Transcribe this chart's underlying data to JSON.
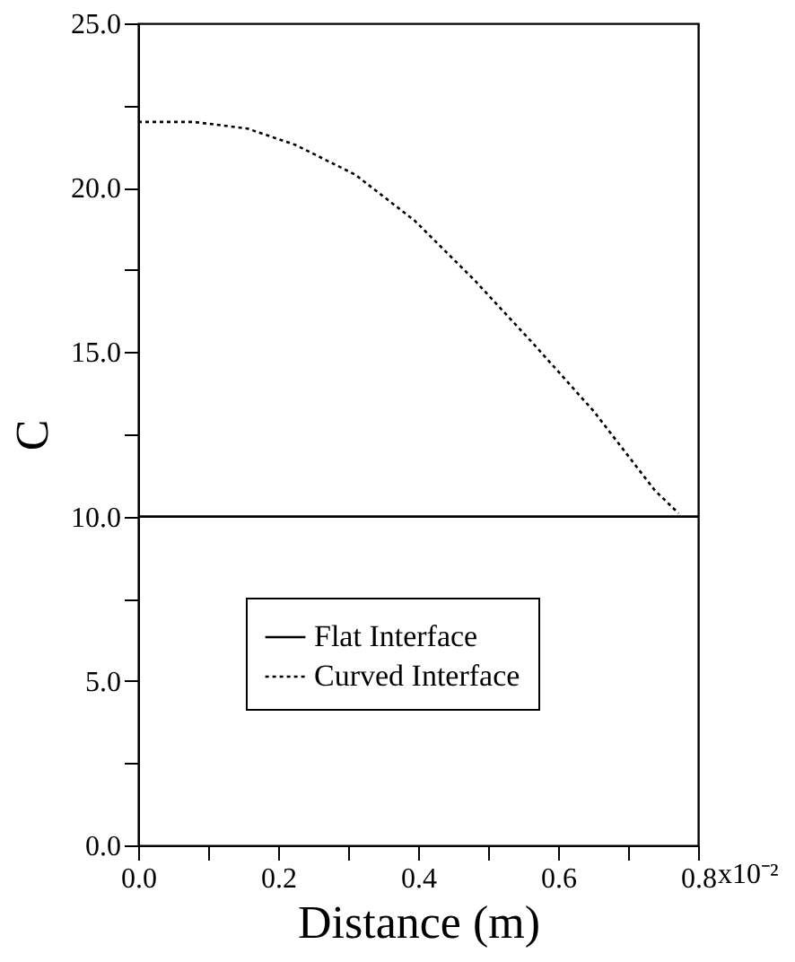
{
  "chart_data": {
    "type": "line",
    "xlabel": "Distance (m)",
    "ylabel": "C",
    "xlim": [
      0,
      0.8
    ],
    "ylim": [
      0,
      25
    ],
    "xticks": [
      {
        "value": 0,
        "label": "0.0"
      },
      {
        "value": 0.1,
        "label": null
      },
      {
        "value": 0.2,
        "label": "0.2"
      },
      {
        "value": 0.3,
        "label": null
      },
      {
        "value": 0.4,
        "label": "0.4"
      },
      {
        "value": 0.5,
        "label": null
      },
      {
        "value": 0.6,
        "label": "0.6"
      },
      {
        "value": 0.7,
        "label": null
      },
      {
        "value": 0.8,
        "label": "0.8"
      }
    ],
    "annotations": [
      "x10⁻²"
    ],
    "yticks": [
      {
        "value": 0,
        "label": "0.0"
      },
      {
        "value": 2.5,
        "label": null
      },
      {
        "value": 5,
        "label": "5.0"
      },
      {
        "value": 7.5,
        "label": null
      },
      {
        "value": 10,
        "label": "10.0"
      },
      {
        "value": 12.5,
        "label": null
      },
      {
        "value": 15,
        "label": "15.0"
      },
      {
        "value": 17.5,
        "label": null
      },
      {
        "value": 20,
        "label": "20.0"
      },
      {
        "value": 22.5,
        "label": null
      },
      {
        "value": 25,
        "label": "25.0"
      }
    ],
    "grid": false,
    "legend": "bottom",
    "marker": "none",
    "series": [
      {
        "name": "Flat Interface",
        "color": "#000000",
        "line_style": "solid",
        "x": [
          0,
          0.8
        ],
        "values": [
          10,
          10
        ]
      },
      {
        "name": "Curved Interface",
        "color": "#000000",
        "line_style": "dotted",
        "x": [
          0,
          0.08,
          0.156,
          0.225,
          0.31,
          0.395,
          0.48,
          0.567,
          0.651,
          0.738,
          0.772
        ],
        "values": [
          22.0,
          22.0,
          21.8,
          21.3,
          20.4,
          19.0,
          17.2,
          15.2,
          13.2,
          10.8,
          10.1
        ]
      }
    ]
  }
}
